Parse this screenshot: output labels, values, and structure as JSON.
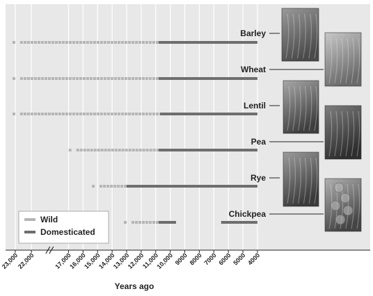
{
  "chart_data": {
    "type": "bar",
    "subtype": "timeline-range",
    "x_direction": "reversed",
    "xlabel": "Years ago",
    "x_ticks": [
      "23,000",
      "22,000",
      "17,000",
      "16,000",
      "15,000",
      "14,000",
      "13,000",
      "12,000",
      "11,000",
      "10,000",
      "9000",
      "8000",
      "7000",
      "6000",
      "5000",
      "4000"
    ],
    "x_tick_values": [
      23000,
      22000,
      17000,
      16000,
      15000,
      14000,
      13000,
      12000,
      11000,
      10000,
      9000,
      8000,
      7000,
      6000,
      5000,
      4000
    ],
    "axis_break": "between 22,000 and 17,000",
    "grid": true,
    "legend": {
      "placement": "bottom-left",
      "entries": [
        {
          "name": "Wild",
          "color": "#b5b5b5"
        },
        {
          "name": "Domesticated",
          "color": "#6e6e6e"
        }
      ]
    },
    "series": [
      {
        "name": "Barley",
        "wild": [
          23000,
          10800
        ],
        "domesticated": [
          10800,
          4000
        ]
      },
      {
        "name": "Wheat",
        "wild": [
          23000,
          10800
        ],
        "domesticated": [
          10800,
          4000
        ]
      },
      {
        "name": "Lentil",
        "wild": [
          23000,
          10700
        ],
        "domesticated": [
          10700,
          4000
        ]
      },
      {
        "name": "Pea",
        "wild": [
          16800,
          10800
        ],
        "domesticated": [
          10800,
          4000
        ]
      },
      {
        "name": "Rye",
        "wild": [
          15200,
          13000
        ],
        "domesticated": [
          13000,
          4000
        ]
      },
      {
        "name": "Chickpea",
        "wild": [
          13000,
          10800
        ],
        "domesticated": [
          10800,
          9600
        ],
        "later_domesticated": [
          6500,
          4000
        ]
      }
    ],
    "photos": [
      "barley-photo",
      "wheat-photo",
      "lentil-photo",
      "pea-photo",
      "rye-photo",
      "chickpea-photo"
    ],
    "colors": {
      "wild": "#b5b5b5",
      "domesticated": "#6e6e6e",
      "panel": "#e8e8e8",
      "grid": "#ffffff"
    }
  }
}
